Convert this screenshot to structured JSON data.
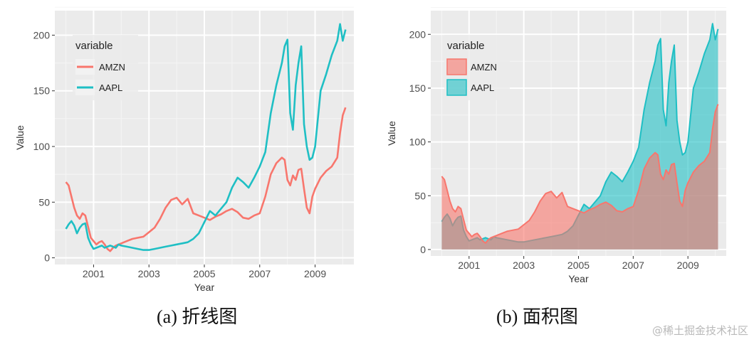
{
  "captions": {
    "a": "(a)  折线图",
    "b": "(b)  面积图"
  },
  "watermark": "@稀土掘金技术社区",
  "colors": {
    "AMZN": "#F8766D",
    "AAPL": "#1FBFC4",
    "panel": "#EBEBEB",
    "grid": "#FFFFFF"
  },
  "chart_data": [
    {
      "type": "line",
      "xlabel": "Year",
      "ylabel": "Value",
      "legend_title": "variable",
      "legend_position": "top-left (inside)",
      "xlim": [
        1999.6,
        2010.4
      ],
      "ylim": [
        -6,
        222
      ],
      "x_ticks": [
        2001,
        2003,
        2005,
        2007,
        2009
      ],
      "y_ticks": [
        0,
        50,
        100,
        150,
        200
      ],
      "grid": true,
      "x": [
        2000.0,
        2000.1,
        2000.2,
        2000.3,
        2000.4,
        2000.5,
        2000.6,
        2000.7,
        2000.8,
        2000.9,
        2001.0,
        2001.1,
        2001.2,
        2001.3,
        2001.4,
        2001.5,
        2001.6,
        2001.7,
        2001.8,
        2001.9,
        2002.0,
        2002.2,
        2002.4,
        2002.6,
        2002.8,
        2003.0,
        2003.2,
        2003.4,
        2003.6,
        2003.8,
        2004.0,
        2004.2,
        2004.4,
        2004.6,
        2004.8,
        2005.0,
        2005.2,
        2005.4,
        2005.6,
        2005.8,
        2006.0,
        2006.2,
        2006.4,
        2006.6,
        2006.8,
        2007.0,
        2007.2,
        2007.4,
        2007.6,
        2007.8,
        2007.9,
        2008.0,
        2008.1,
        2008.2,
        2008.3,
        2008.4,
        2008.5,
        2008.6,
        2008.7,
        2008.8,
        2008.9,
        2009.0,
        2009.2,
        2009.4,
        2009.6,
        2009.8,
        2009.9,
        2010.0,
        2010.1
      ],
      "series": [
        {
          "name": "AMZN",
          "values": [
            68,
            65,
            55,
            45,
            38,
            35,
            40,
            38,
            28,
            18,
            15,
            12,
            14,
            15,
            12,
            8,
            6,
            9,
            11,
            12,
            13,
            15,
            17,
            18,
            19,
            23,
            27,
            35,
            45,
            52,
            54,
            48,
            53,
            40,
            38,
            36,
            34,
            37,
            39,
            42,
            44,
            41,
            36,
            35,
            38,
            40,
            55,
            75,
            85,
            90,
            88,
            70,
            65,
            74,
            70,
            79,
            80,
            62,
            45,
            40,
            55,
            62,
            72,
            78,
            82,
            90,
            112,
            128,
            135
          ]
        },
        {
          "name": "AAPL",
          "values": [
            26,
            30,
            33,
            29,
            22,
            27,
            30,
            31,
            18,
            12,
            8,
            9,
            10,
            11,
            9,
            10,
            11,
            10,
            9,
            12,
            11,
            10,
            9,
            8,
            7,
            7,
            8,
            9,
            10,
            11,
            12,
            13,
            14,
            17,
            22,
            32,
            42,
            38,
            44,
            50,
            63,
            72,
            68,
            63,
            72,
            82,
            95,
            130,
            155,
            175,
            190,
            196,
            130,
            115,
            155,
            175,
            190,
            120,
            100,
            88,
            90,
            100,
            150,
            165,
            182,
            195,
            210,
            195,
            205
          ]
        }
      ]
    },
    {
      "type": "area",
      "xlabel": "Year",
      "ylabel": "Value",
      "legend_title": "variable",
      "legend_position": "top-left (inside)",
      "xlim": [
        1999.6,
        2010.4
      ],
      "ylim": [
        -6,
        222
      ],
      "x_ticks": [
        2001,
        2003,
        2005,
        2007,
        2009
      ],
      "y_ticks": [
        0,
        50,
        100,
        150,
        200
      ],
      "grid": true,
      "series_ref": "same data as line chart",
      "series": [
        {
          "name": "AMZN"
        },
        {
          "name": "AAPL"
        }
      ]
    }
  ]
}
